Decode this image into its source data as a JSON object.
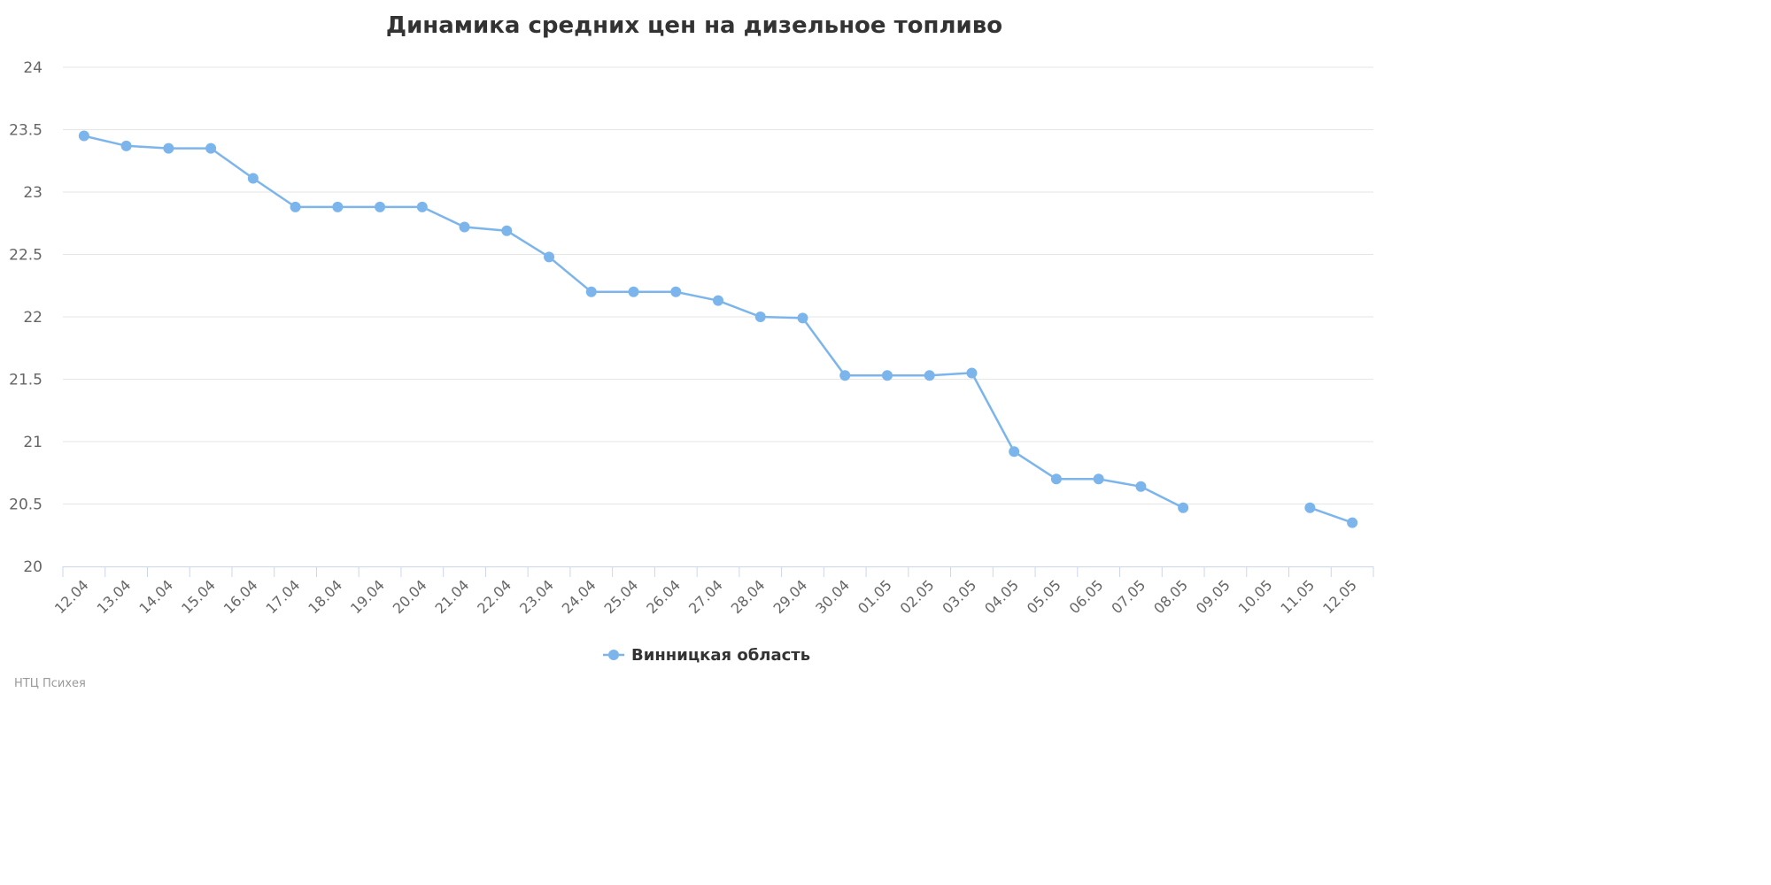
{
  "chart_data": {
    "type": "line",
    "title": "Динамика средних цен на дизельное топливо",
    "xlabel": "",
    "ylabel": "",
    "ylim": [
      20,
      24
    ],
    "yticks": [
      "20",
      "20.5",
      "21",
      "21.5",
      "22",
      "22.5",
      "23",
      "23.5",
      "24"
    ],
    "categories": [
      "12.04",
      "13.04",
      "14.04",
      "15.04",
      "16.04",
      "17.04",
      "18.04",
      "19.04",
      "20.04",
      "21.04",
      "22.04",
      "23.04",
      "24.04",
      "25.04",
      "26.04",
      "27.04",
      "28.04",
      "29.04",
      "30.04",
      "01.05",
      "02.05",
      "03.05",
      "04.05",
      "05.05",
      "06.05",
      "07.05",
      "08.05",
      "09.05",
      "10.05",
      "11.05",
      "12.05"
    ],
    "series": [
      {
        "name": "Винницкая область",
        "color": "#7cb5ec",
        "values": [
          23.45,
          23.37,
          23.35,
          23.35,
          23.11,
          22.88,
          22.88,
          22.88,
          22.88,
          22.72,
          22.69,
          22.48,
          22.2,
          22.2,
          22.2,
          22.13,
          22.0,
          21.99,
          21.53,
          21.53,
          21.53,
          21.55,
          20.92,
          20.7,
          20.7,
          20.64,
          20.47,
          null,
          null,
          20.47,
          20.35
        ]
      }
    ],
    "grid": true,
    "legend": "bottom-center"
  },
  "credits": "НТЦ Психея"
}
